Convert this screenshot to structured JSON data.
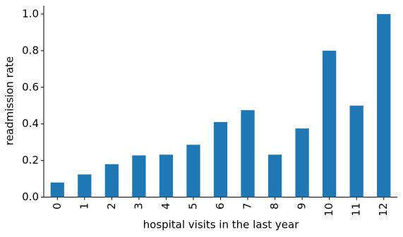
{
  "chart_data": {
    "type": "bar",
    "xlabel": "hospital visits in the last year",
    "ylabel": "readmission rate",
    "categories": [
      "0",
      "1",
      "2",
      "3",
      "4",
      "5",
      "6",
      "7",
      "8",
      "9",
      "10",
      "11",
      "12"
    ],
    "values": [
      0.08,
      0.124,
      0.18,
      0.228,
      0.232,
      0.286,
      0.41,
      0.475,
      0.232,
      0.375,
      0.8,
      0.5,
      1.0
    ],
    "color": "#1f77b4",
    "ylim": [
      0,
      1.046
    ],
    "yticks": [
      {
        "value": 0,
        "label": "0.0"
      },
      {
        "value": 0.2,
        "label": "0.2"
      },
      {
        "value": 0.4,
        "label": "0.4"
      },
      {
        "value": 0.6,
        "label": "0.6"
      },
      {
        "value": 0.8,
        "label": "0.8"
      },
      {
        "value": 1.0,
        "label": "1.0"
      }
    ],
    "grid": false
  }
}
